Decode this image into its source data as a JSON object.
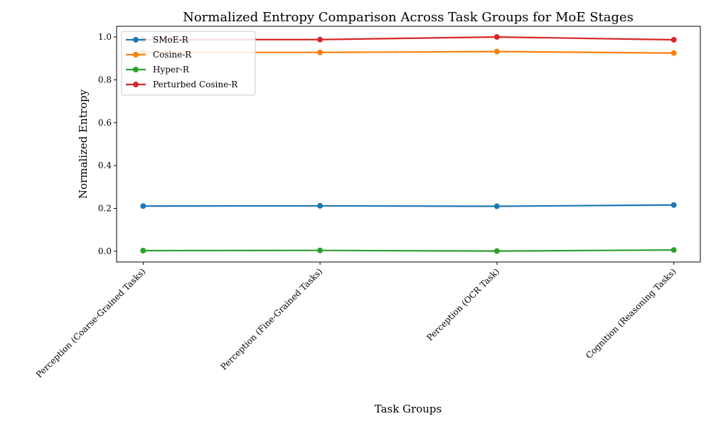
{
  "chart_data": {
    "type": "line",
    "title": "Normalized Entropy Comparison Across Task Groups for MoE Stages",
    "xlabel": "Task Groups",
    "ylabel": "Normalized Entropy",
    "categories": [
      "Perception (Coarse-Grained Tasks)",
      "Perception (Fine-Grained Tasks)",
      "Perception (OCR Task)",
      "Cognition (Reasoning Tasks)"
    ],
    "ylim": [
      -0.05,
      1.05
    ],
    "yticks": [
      0.0,
      0.2,
      0.4,
      0.6,
      0.8,
      1.0
    ],
    "ytick_labels": [
      "0.0",
      "0.2",
      "0.4",
      "0.6",
      "0.8",
      "1.0"
    ],
    "grid": false,
    "legend_position": "top-left",
    "series": [
      {
        "name": "SMoE-R",
        "color": "#1f77b4",
        "values": [
          0.211,
          0.212,
          0.21,
          0.216
        ]
      },
      {
        "name": "Cosine-R",
        "color": "#ff7f0e",
        "values": [
          0.928,
          0.928,
          0.932,
          0.925
        ]
      },
      {
        "name": "Hyper-R",
        "color": "#2ca02c",
        "values": [
          0.003,
          0.004,
          0.001,
          0.006
        ]
      },
      {
        "name": "Perturbed Cosine-R",
        "color": "#d62728",
        "values": [
          0.988,
          0.988,
          1.0,
          0.987
        ]
      }
    ]
  }
}
